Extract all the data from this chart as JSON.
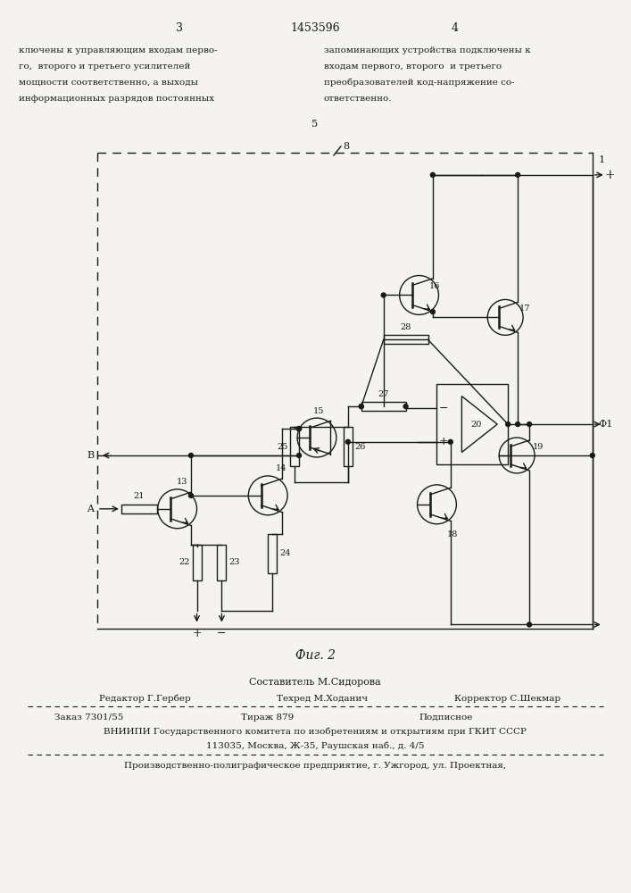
{
  "bg_color": "#f5f3ef",
  "text_color": "#1a1a1a",
  "line_color": "#1a1a1a",
  "page_number_left": "3",
  "patent_number": "1453596",
  "page_number_right": "4",
  "top_left_text": [
    "ключены к управляющим входам перво-",
    "го,  второго и третьего усилителей",
    "мощности соответственно, а выходы",
    "информационных разрядов постоянных"
  ],
  "top_right_text": [
    "запоминающих устройства подключены к",
    "входам первого, второго  и третьего",
    "преобразователей код-напряжение со-",
    "ответственно."
  ],
  "line_num_5": "5",
  "diagram_label": "Фиг. 2",
  "footer_composer": "Составитель М.Сидорова",
  "footer_editor": "Редактор Г.Гербер",
  "footer_techred": "Техред М.Ходанич",
  "footer_corrector": "Корректор С.Шекмар",
  "footer_order": "Заказ 7301/55",
  "footer_tirazh": "Тираж 879",
  "footer_podpisnoe": "Подписное",
  "footer_vniiipi": "ВНИИПИ Государственного комитета по изобретениям и открытиям при ГКИТ СССР",
  "footer_address": "113035, Москва, Ж-35, Раушская наб., д. 4/5",
  "footer_production": "Производственно-полиграфическое предприятие, г. Ужгород, ул. Проектная,"
}
